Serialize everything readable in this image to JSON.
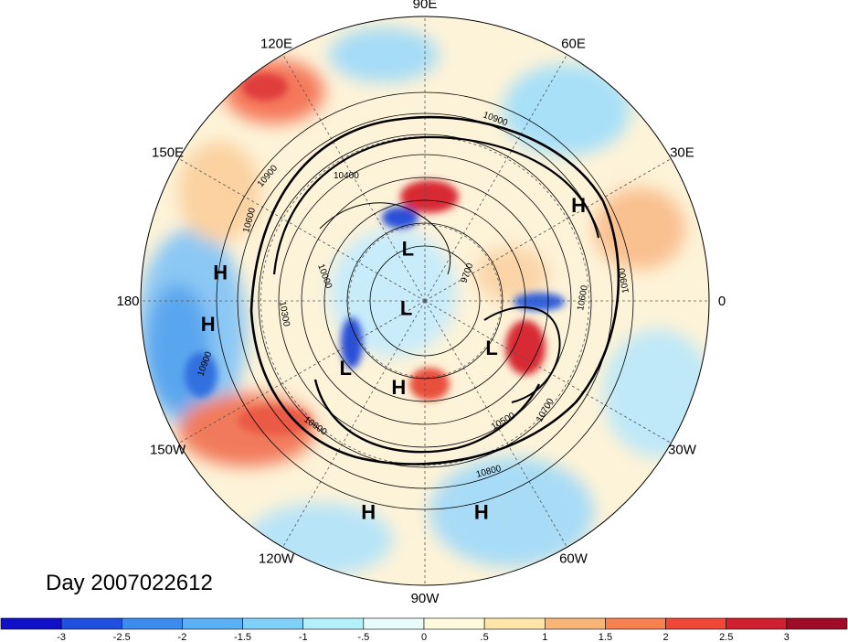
{
  "title": "Day 2007022612",
  "lon_labels": [
    {
      "text": "90E",
      "lon": 90
    },
    {
      "text": "60E",
      "lon": 60
    },
    {
      "text": "30E",
      "lon": 30
    },
    {
      "text": "0",
      "lon": 0
    },
    {
      "text": "30W",
      "lon": -30
    },
    {
      "text": "60W",
      "lon": -60
    },
    {
      "text": "90W",
      "lon": -90
    },
    {
      "text": "120W",
      "lon": -120
    },
    {
      "text": "150W",
      "lon": -150
    },
    {
      "text": "180",
      "lon": 180
    },
    {
      "text": "150E",
      "lon": 150
    },
    {
      "text": "120E",
      "lon": 120
    }
  ],
  "pressure_centers": [
    {
      "type": "H",
      "lat": 25,
      "lon": 32
    },
    {
      "type": "H",
      "lat": 18,
      "lon": 172
    },
    {
      "type": "H",
      "lat": 15,
      "lon": -174
    },
    {
      "type": "L",
      "lat": 68,
      "lon": 108
    },
    {
      "type": "L",
      "lat": 82,
      "lon": -160
    },
    {
      "type": "L",
      "lat": 50,
      "lon": -140
    },
    {
      "type": "H",
      "lat": 55,
      "lon": -107
    },
    {
      "type": "L",
      "lat": 58,
      "lon": -35
    },
    {
      "type": "H",
      "lat": 15,
      "lon": -105
    },
    {
      "type": "H",
      "lat": 15,
      "lon": -75
    }
  ],
  "contour_labels": [
    "10900",
    "10900",
    "10400",
    "10600",
    "10000",
    "10300",
    "10900",
    "10600",
    "10500",
    "10700",
    "10800",
    "10600",
    "10900",
    "9700"
  ],
  "colorbar": {
    "colors": [
      "#1010c8",
      "#2050e0",
      "#3c8cf0",
      "#5ab0f5",
      "#80d0fa",
      "#b4f0fa",
      "#e8fcfc",
      "#fffadc",
      "#fde6a8",
      "#f9b478",
      "#f68050",
      "#f04838",
      "#d02030",
      "#a00c28"
    ],
    "labels": [
      "-3",
      "-2.5",
      "-2",
      "-1.5",
      "-1",
      "-.5",
      "0",
      ".5",
      "1",
      "1.5",
      "2",
      "2.5",
      "3"
    ]
  }
}
